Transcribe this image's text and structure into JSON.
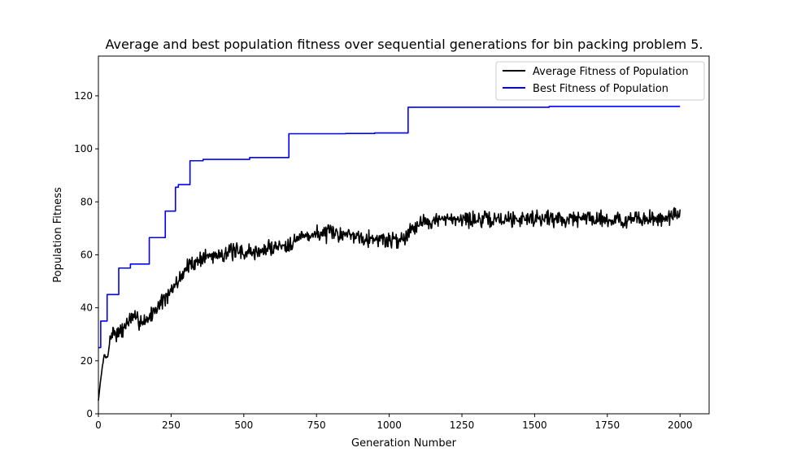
{
  "chart_data": {
    "type": "line",
    "title": "Average and best population fitness over sequential generations for bin packing problem 5.",
    "xlabel": "Generation Number",
    "ylabel": "Population Fitness",
    "xlim": [
      0,
      2100
    ],
    "ylim": [
      0,
      135
    ],
    "xticks": [
      0,
      250,
      500,
      750,
      1000,
      1250,
      1500,
      1750,
      2000
    ],
    "yticks": [
      0,
      20,
      40,
      60,
      80,
      100,
      120
    ],
    "grid": false,
    "legend_position": "top-right",
    "series": [
      {
        "name": "Average Fitness of Population",
        "color": "#000000",
        "style": "noisy",
        "noise_amplitude": 2.8,
        "seed": 7,
        "points": [
          [
            0,
            5
          ],
          [
            10,
            15
          ],
          [
            20,
            22
          ],
          [
            30,
            21
          ],
          [
            40,
            28
          ],
          [
            50,
            31
          ],
          [
            70,
            30
          ],
          [
            80,
            31
          ],
          [
            100,
            35
          ],
          [
            120,
            36
          ],
          [
            150,
            35
          ],
          [
            170,
            36
          ],
          [
            180,
            37
          ],
          [
            200,
            40
          ],
          [
            220,
            43
          ],
          [
            240,
            44
          ],
          [
            260,
            48
          ],
          [
            280,
            51
          ],
          [
            300,
            55
          ],
          [
            330,
            57
          ],
          [
            360,
            59
          ],
          [
            400,
            60
          ],
          [
            450,
            61
          ],
          [
            500,
            61
          ],
          [
            550,
            61
          ],
          [
            600,
            63
          ],
          [
            650,
            64
          ],
          [
            700,
            67
          ],
          [
            750,
            68
          ],
          [
            800,
            68
          ],
          [
            850,
            68
          ],
          [
            900,
            67
          ],
          [
            950,
            66
          ],
          [
            1000,
            65.5
          ],
          [
            1050,
            66
          ],
          [
            1065,
            69
          ],
          [
            1100,
            72
          ],
          [
            1150,
            73
          ],
          [
            1200,
            73
          ],
          [
            1250,
            74
          ],
          [
            1300,
            73
          ],
          [
            1400,
            73.5
          ],
          [
            1500,
            74
          ],
          [
            1600,
            73.5
          ],
          [
            1700,
            74
          ],
          [
            1800,
            73
          ],
          [
            1900,
            73.5
          ],
          [
            2000,
            75
          ]
        ]
      },
      {
        "name": "Best Fitness of Population",
        "color": "#0000ff",
        "style": "step",
        "points": [
          [
            0,
            25
          ],
          [
            8,
            35
          ],
          [
            30,
            45
          ],
          [
            70,
            55
          ],
          [
            110,
            56.5
          ],
          [
            175,
            66.5
          ],
          [
            230,
            76.5
          ],
          [
            265,
            85.5
          ],
          [
            275,
            86.5
          ],
          [
            315,
            95.5
          ],
          [
            360,
            96
          ],
          [
            520,
            96.7
          ],
          [
            655,
            105.7
          ],
          [
            850,
            105.8
          ],
          [
            950,
            106
          ],
          [
            1065,
            115.7
          ],
          [
            1550,
            116
          ],
          [
            2000,
            116
          ]
        ]
      }
    ]
  }
}
